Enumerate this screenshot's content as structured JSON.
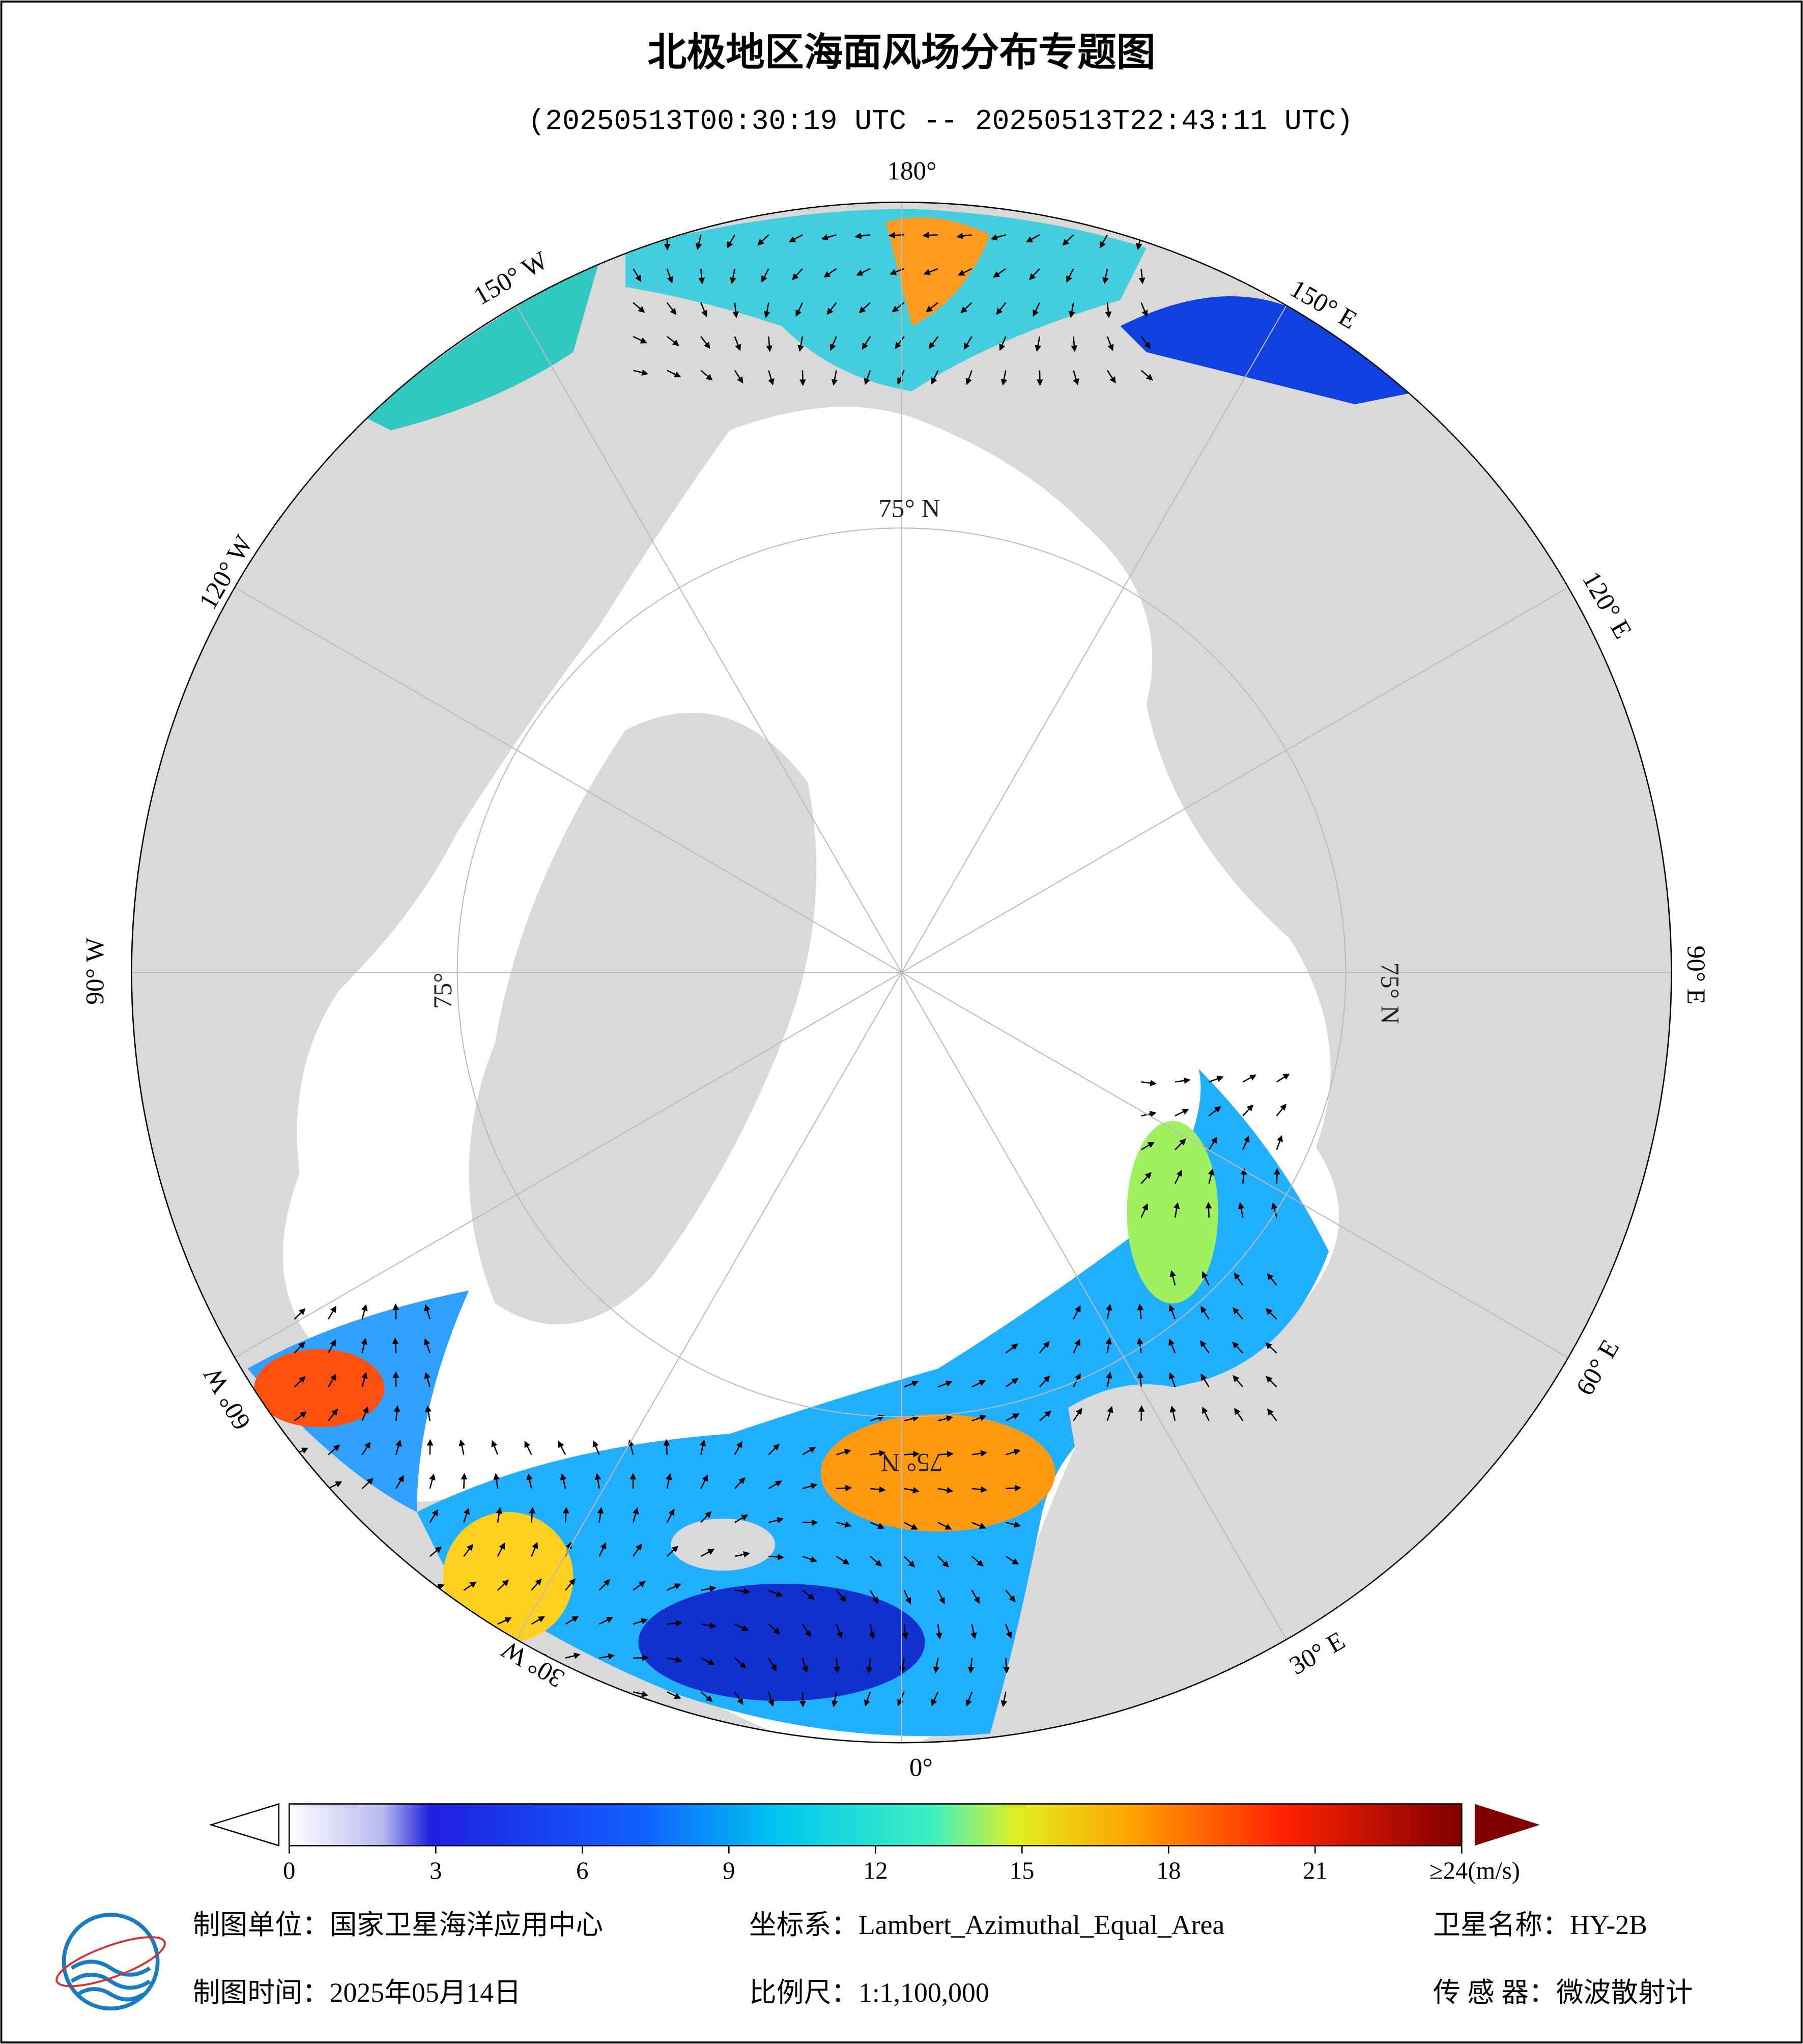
{
  "header": {
    "title": "北极地区海面风场分布专题图",
    "subtitle": "(20250513T00:30:19 UTC -- 20250513T22:43:11 UTC)"
  },
  "map": {
    "longitude_labels": [
      "180°",
      "150° E",
      "120° E",
      "90° E",
      "60° E",
      "30° E",
      "0°",
      "30° W",
      "60° W",
      "90° W",
      "120° W",
      "150° W"
    ],
    "latitude_labels": [
      "75° N",
      "75° N",
      "75°",
      "75° N"
    ]
  },
  "colorbar": {
    "range": [
      0,
      24
    ],
    "ticks": [
      0,
      3,
      6,
      9,
      12,
      15,
      18,
      21,
      {
        "value": 24,
        "label": "≥24(m/s)"
      }
    ]
  },
  "footer": {
    "producer": "制图单位：国家卫星海洋应用中心",
    "coordinate_system": "坐标系：Lambert_Azimuthal_Equal_Area",
    "satellite": "卫星名称：HY-2B",
    "date": "制图时间：2025年05月14日",
    "scale": "比例尺：1:1,100,000",
    "sensor": "传 感 器：微波散射计"
  }
}
